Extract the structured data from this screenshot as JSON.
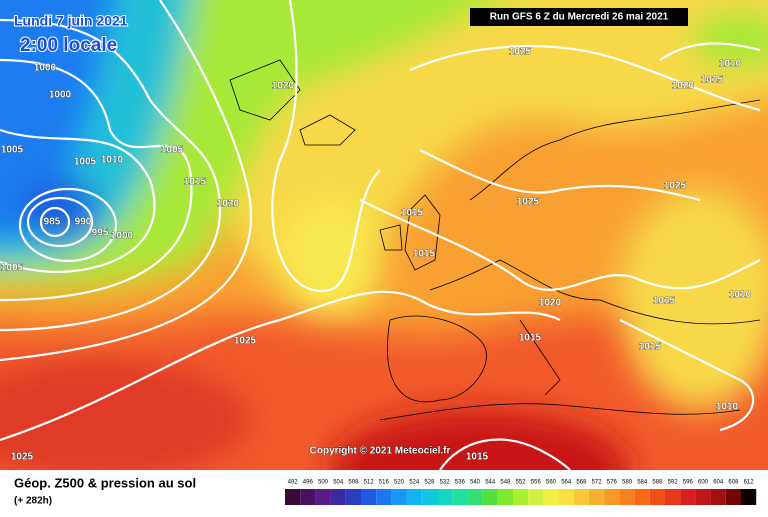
{
  "header": {
    "date": "Lundi 7 juin 2021",
    "time": "2:00 locale",
    "run": "Run GFS 6 Z du Mercredi 26 mai 2021"
  },
  "isobar_labels": [
    "1000",
    "1000",
    "1005",
    "1005",
    "1010",
    "1005",
    "1015",
    "1020",
    "985",
    "990",
    "995",
    "1000",
    "1005",
    "1025",
    "1020",
    "1015",
    "1010",
    "1020",
    "1025",
    "1015",
    "1025",
    "1015",
    "1020",
    "1015",
    "1010",
    "1015",
    "1015",
    "1025",
    "1010",
    "1025",
    "1015"
  ],
  "copyright": "Copyright © 2021 Meteociel.fr",
  "footer": {
    "title": "Géop. Z500 & pression au sol",
    "lead": "(+ 282h)"
  },
  "scale": {
    "values": [
      492,
      496,
      500,
      504,
      508,
      512,
      516,
      520,
      524,
      528,
      532,
      536,
      540,
      544,
      548,
      552,
      556,
      560,
      564,
      568,
      572,
      576,
      580,
      584,
      588,
      592,
      596,
      600,
      604,
      608,
      612
    ],
    "colors": [
      "#3a0a3c",
      "#4b1060",
      "#5a1a8a",
      "#3a2aa0",
      "#2a3cc0",
      "#1f5ae0",
      "#1a78f0",
      "#1a96f8",
      "#10b4f0",
      "#10c8e0",
      "#10d8c0",
      "#20e0a0",
      "#30e070",
      "#50e040",
      "#80e830",
      "#a8f030",
      "#d0f040",
      "#f0f040",
      "#f8e040",
      "#f8c838",
      "#f8b030",
      "#f89828",
      "#f88020",
      "#f86818",
      "#f05018",
      "#e83818",
      "#d82020",
      "#c01818",
      "#a01010",
      "#700808",
      "#100000"
    ]
  }
}
